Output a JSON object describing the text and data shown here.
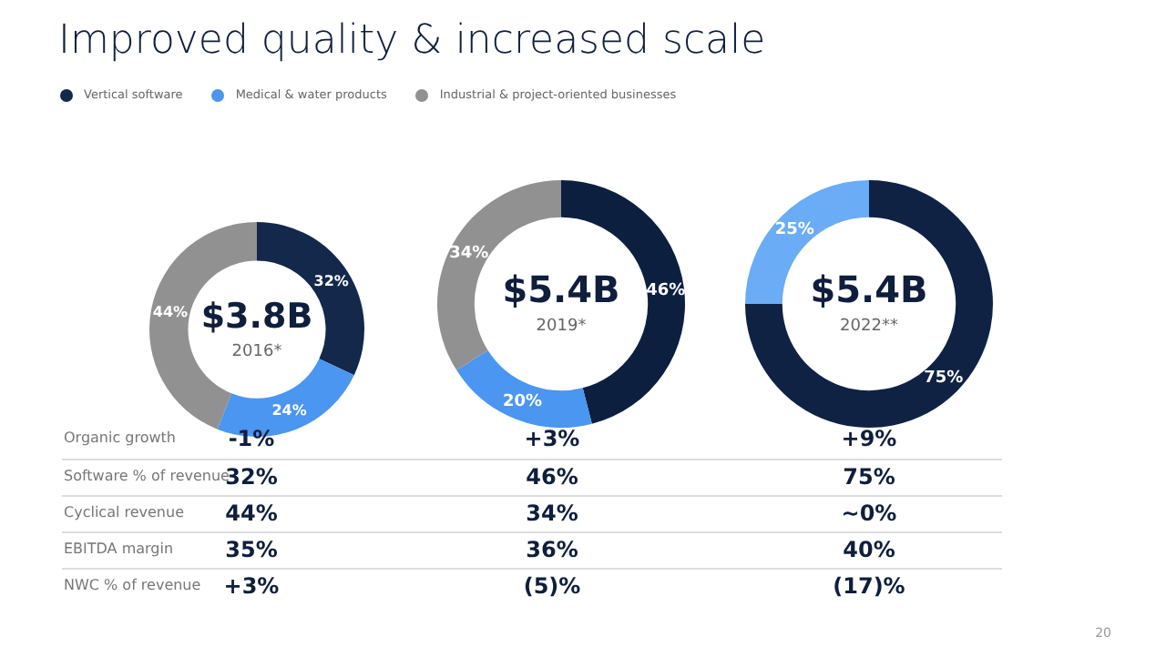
{
  "chart_data": [
    {
      "type": "donut",
      "title": "Improved quality & increased scale",
      "legend": "top",
      "categories": [
        "Vertical software",
        "Medical & water products",
        "Industrial & project-oriented businesses"
      ],
      "values": [
        32,
        24,
        44
      ],
      "colors": [
        "#13284a",
        "#4a96f0",
        "#919191"
      ],
      "value_labels": [
        "32%",
        "24%",
        "44%"
      ],
      "annotations": [
        "$3.8B",
        "2016*"
      ]
    },
    {
      "type": "donut",
      "categories": [
        null,
        null,
        null
      ],
      "values": [
        46,
        20,
        34
      ],
      "colors": [
        "#0d1f3f",
        "#4a96f0",
        "#919191"
      ],
      "value_labels": [
        "46%",
        "20%",
        "34%"
      ],
      "annotations": [
        "$5.4B",
        "2019*"
      ]
    },
    {
      "type": "donut",
      "categories": [
        null,
        null
      ],
      "values": [
        75,
        25
      ],
      "colors": [
        "#0f2244",
        "#6aacf5"
      ],
      "value_labels": [
        "75%",
        "25%"
      ],
      "annotations": [
        "$5.4B",
        "2022**"
      ]
    },
    {
      "type": "other",
      "y_categories": [
        "Organic growth",
        "Software % of revenue",
        "Cyclical revenue",
        "EBITDA margin",
        "NWC % of revenue"
      ],
      "cell_labels": [
        [
          "-1%",
          "+3%",
          "+9%"
        ],
        [
          "32%",
          "46%",
          "75%"
        ],
        [
          "44%",
          "34%",
          "~0%"
        ],
        [
          "35%",
          "36%",
          "40%"
        ],
        [
          "+3%",
          "(5)%",
          "(17)%"
        ]
      ],
      "annotations": [
        "20"
      ]
    }
  ]
}
